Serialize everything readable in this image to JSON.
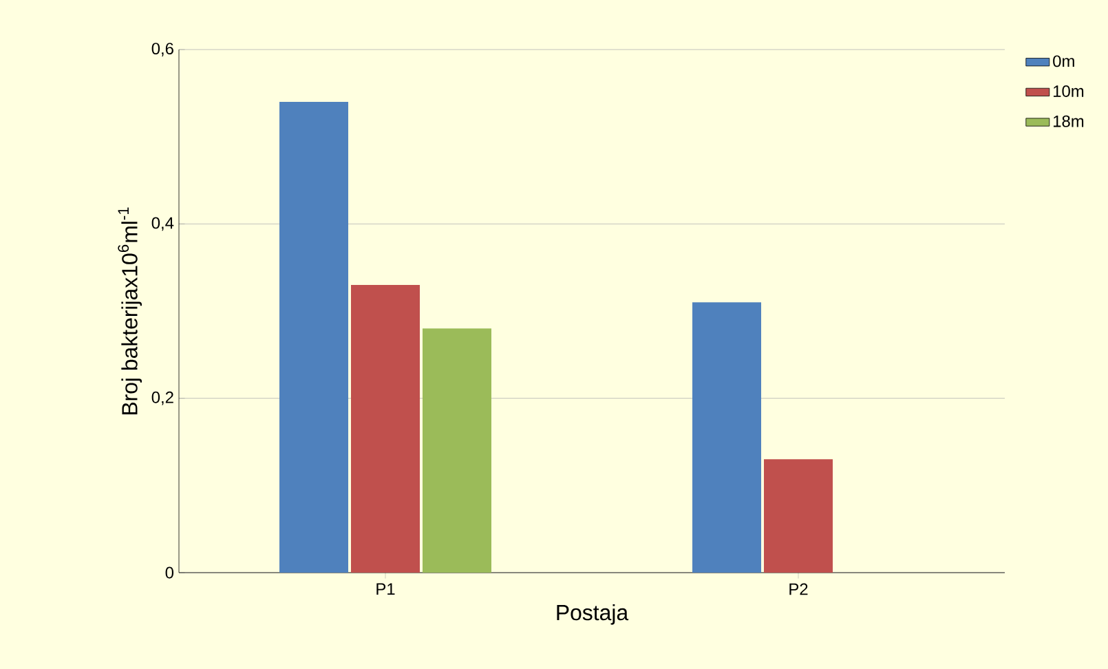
{
  "chart_data": {
    "type": "bar",
    "xlabel": "Postaja",
    "ylabel": "Broj bakterijax10$^{6}$ml$^{-1}$",
    "categories": [
      "P1",
      "P2"
    ],
    "series": [
      {
        "name": "0m",
        "color": "#4f81bd",
        "values": [
          0.54,
          0.31
        ]
      },
      {
        "name": "10m",
        "color": "#c0504d",
        "values": [
          0.33,
          0.13
        ]
      },
      {
        "name": "18m",
        "color": "#9bbb59",
        "values": [
          0.28,
          null
        ]
      }
    ],
    "ylim": [
      0,
      0.6
    ],
    "yticks": [
      {
        "value": 0,
        "label": "0"
      },
      {
        "value": 0.2,
        "label": "0,2"
      },
      {
        "value": 0.4,
        "label": "0,4"
      },
      {
        "value": 0.6,
        "label": "0,6"
      }
    ],
    "grid": "y",
    "legend": "top right"
  }
}
